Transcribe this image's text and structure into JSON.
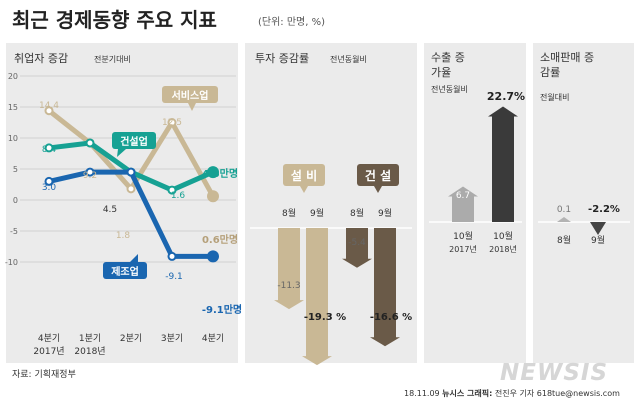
{
  "header": {
    "title": "최근 경제동향 주요 지표",
    "unit": "(단위: 만명, %)"
  },
  "source": "자료: 기획재정부",
  "credit": {
    "date": "18.11.09",
    "agency": "뉴시스 그래픽:",
    "author": "전진우 기자 618tue@newsis.com"
  },
  "watermark": "NEWSIS",
  "colors": {
    "panel_bg": "#ebebeb",
    "services": "#c9b895",
    "construction_emp": "#16a193",
    "manufacturing": "#1a66b0",
    "facility": "#c9b895",
    "construction_inv": "#6a5a48",
    "export": "#ababab",
    "export_dark": "#3a3a3a",
    "retail": "#b3b3b3",
    "retail_dark": "#454545"
  },
  "chart_data": [
    {
      "type": "line",
      "title": "취업자 증감",
      "subtitle": "전분기대비",
      "x_tick_labels": [
        [
          "4분기",
          "2017년"
        ],
        [
          "1분기",
          "2018년"
        ],
        [
          "2분기",
          ""
        ],
        [
          "3분기",
          ""
        ],
        [
          "4분기",
          ""
        ]
      ],
      "ylim": [
        -10,
        20
      ],
      "y_ticks": [
        20,
        15,
        10,
        5,
        0,
        -5,
        -10
      ],
      "grid": true,
      "series": [
        {
          "name": "서비스업",
          "values": [
            14.4,
            9.2,
            1.8,
            12.5,
            0.6
          ],
          "labels": [
            "14.4",
            "9.2",
            "1.8",
            "12.5",
            "0.6만명"
          ],
          "color": "#c9b895"
        },
        {
          "name": "건설업",
          "values": [
            8.4,
            9.2,
            4.5,
            1.6,
            4.5
          ],
          "labels": [
            "8.4",
            "",
            "4.5",
            "1.6",
            "4.5만명"
          ],
          "color": "#16a193"
        },
        {
          "name": "제조업",
          "values": [
            3.0,
            4.5,
            4.5,
            -9.1,
            -9.1
          ],
          "labels": [
            "3.0",
            "",
            "",
            "-9.1",
            "-9.1만명"
          ],
          "color": "#1a66b0"
        }
      ]
    },
    {
      "type": "bar",
      "title": "투자 증감률",
      "subtitle": "전년동월비",
      "groups": [
        {
          "name": "설 비",
          "categories": [
            "8월",
            "9월"
          ],
          "values": [
            -11.3,
            -19.3
          ],
          "labels": [
            "-11.3",
            "-19.3 %"
          ],
          "color": "#c9b895"
        },
        {
          "name": "건 설",
          "categories": [
            "8월",
            "9월"
          ],
          "values": [
            -5.4,
            -16.6
          ],
          "labels": [
            "-5.4",
            "-16.6 %"
          ],
          "color": "#6a5a48"
        }
      ]
    },
    {
      "type": "bar",
      "title": "수출 증가율",
      "subtitle": "전년동월비",
      "categories": [
        [
          "10월",
          "2017년"
        ],
        [
          "10월",
          "2018년"
        ]
      ],
      "values": [
        6.7,
        22.7
      ],
      "labels": [
        "6.7",
        "22.7%"
      ]
    },
    {
      "type": "bar",
      "title": "소매판매 증감률",
      "subtitle": "전월대비",
      "categories": [
        "8월",
        "9월"
      ],
      "values": [
        0.1,
        -2.2
      ],
      "labels": [
        "0.1",
        "-2.2%"
      ]
    }
  ]
}
